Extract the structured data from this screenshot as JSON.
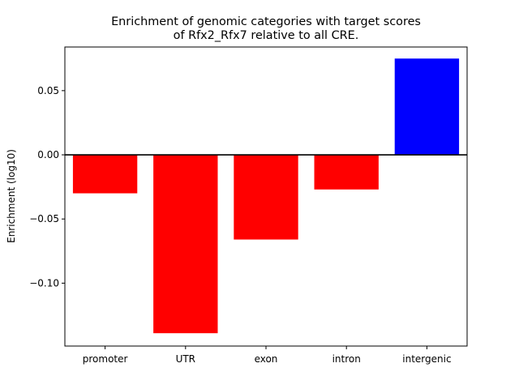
{
  "chart_data": {
    "type": "bar",
    "title_line1": "Enrichment of genomic categories with target scores",
    "title_line2": "of Rfx2_Rfx7 relative to all CRE.",
    "xlabel": "",
    "ylabel": "Enrichment (log10)",
    "categories": [
      "promoter",
      "UTR",
      "exon",
      "intron",
      "intergenic"
    ],
    "values": [
      -0.03,
      -0.139,
      -0.066,
      -0.027,
      0.075
    ],
    "colors": [
      "#ff0000",
      "#ff0000",
      "#ff0000",
      "#ff0000",
      "#0000ff"
    ],
    "ylim": [
      -0.149,
      0.084
    ],
    "yticks": [
      0.05,
      0.0,
      -0.05,
      -0.1
    ],
    "ytick_labels": [
      "0.05",
      "0.00",
      "−0.05",
      "−0.10"
    ],
    "grid": false,
    "legend": "none",
    "zero_line": true
  }
}
